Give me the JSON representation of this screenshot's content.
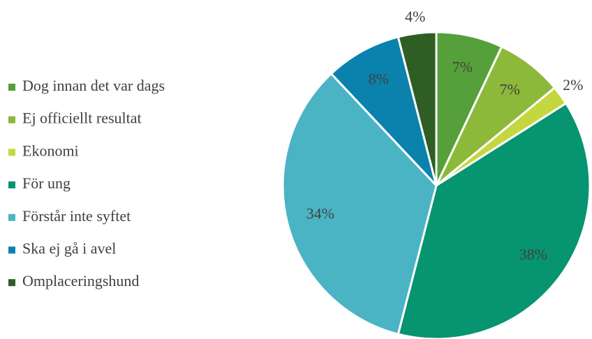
{
  "chart_data": {
    "type": "pie",
    "categories": [
      "Dog innan det var dags",
      "Ej officiellt resultat",
      "Ekonomi",
      "För ung",
      "Förstår inte syftet",
      "Ska ej gå i avel",
      "Omplaceringshund"
    ],
    "values": [
      7,
      7,
      2,
      38,
      34,
      8,
      4
    ],
    "value_labels": [
      "7%",
      "7%",
      "2%",
      "38%",
      "34%",
      "8%",
      "4%"
    ],
    "colors": [
      "#55a03a",
      "#8db93a",
      "#c5d73f",
      "#079470",
      "#4bb4c4",
      "#0a82ad",
      "#2e5e24"
    ],
    "legend": "left"
  }
}
